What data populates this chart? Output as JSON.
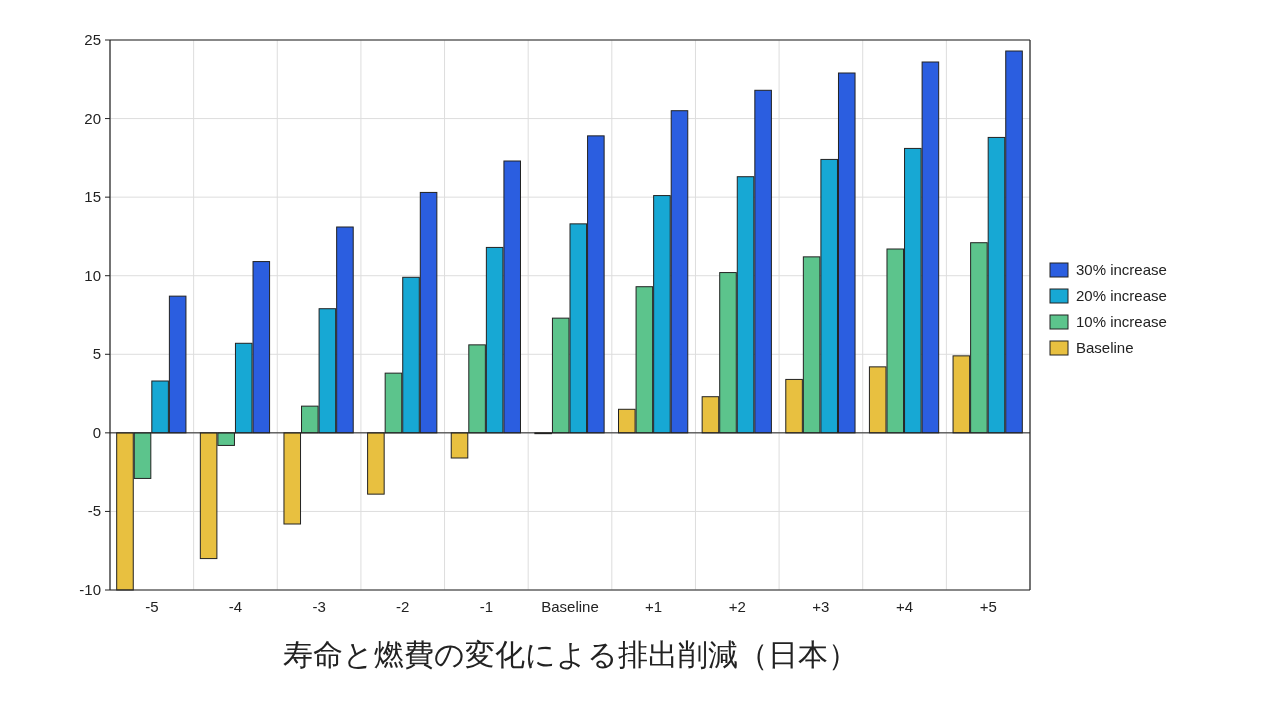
{
  "chart_data": {
    "type": "bar",
    "title": "寿命と燃費の変化による排出削減（日本）",
    "categories": [
      "-5",
      "-4",
      "-3",
      "-2",
      "-1",
      "Baseline",
      "+1",
      "+2",
      "+3",
      "+4",
      "+5"
    ],
    "series": [
      {
        "name": "Baseline",
        "color": "#e8c040",
        "values": [
          -10,
          -8,
          -5.8,
          -3.9,
          -1.6,
          0,
          1.5,
          2.3,
          3.4,
          4.2,
          4.9
        ]
      },
      {
        "name": "10% increase",
        "color": "#5cc48c",
        "values": [
          -2.9,
          -0.8,
          1.7,
          3.8,
          5.6,
          7.3,
          9.3,
          10.2,
          11.2,
          11.7,
          12.1
        ]
      },
      {
        "name": "20% increase",
        "color": "#17a8d4",
        "values": [
          3.3,
          5.7,
          7.9,
          9.9,
          11.8,
          13.3,
          15.1,
          16.3,
          17.4,
          18.1,
          18.8
        ]
      },
      {
        "name": "30% increase",
        "color": "#2b5ee0",
        "values": [
          8.7,
          10.9,
          13.1,
          15.3,
          17.3,
          18.9,
          20.5,
          21.8,
          22.9,
          23.6,
          24.3
        ]
      }
    ],
    "ylim": [
      -10,
      25
    ],
    "yticks": [
      -10,
      -5,
      0,
      5,
      10,
      15,
      20,
      25
    ],
    "grid": true,
    "legend": "right"
  }
}
